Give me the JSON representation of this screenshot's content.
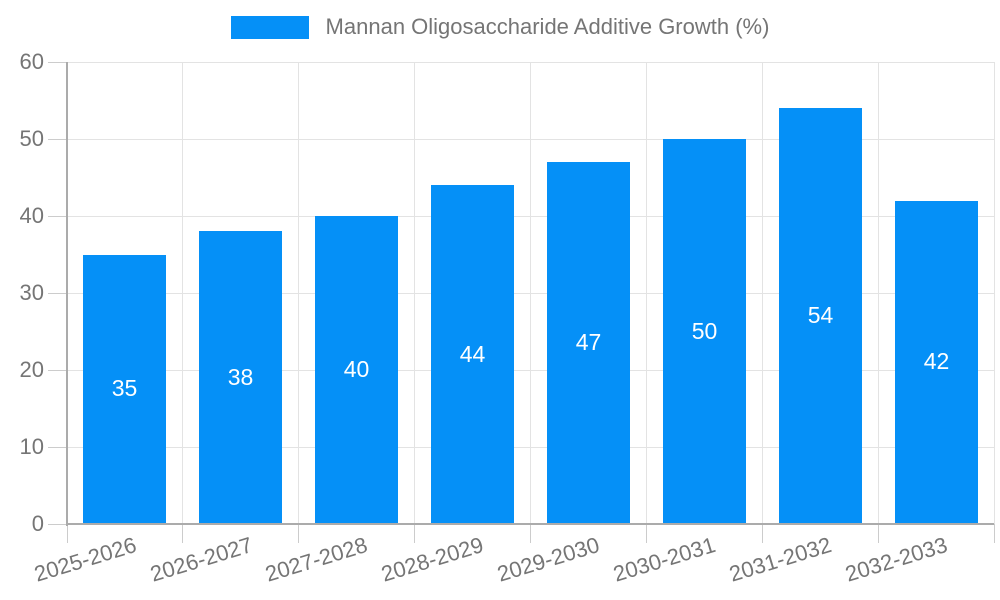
{
  "legend": {
    "label": "Mannan Oligosaccharide Additive Growth (%)",
    "swatch_color": "#0590f7"
  },
  "colors": {
    "bar": "#0590f7",
    "grid": "#e3e3e3",
    "axis": "#ababab",
    "tick": "#cccccc",
    "tick_text": "#757575",
    "value_text": "#ffffff",
    "background": "#ffffff"
  },
  "chart_data": {
    "type": "bar",
    "title": "Mannan Oligosaccharide Additive Growth (%)",
    "categories": [
      "2025-2026",
      "2026-2027",
      "2027-2028",
      "2028-2029",
      "2029-2030",
      "2030-2031",
      "2031-2032",
      "2032-2033"
    ],
    "values": [
      35,
      38,
      40,
      44,
      47,
      50,
      54,
      42
    ],
    "xlabel": "",
    "ylabel": "",
    "ylim": [
      0,
      60
    ],
    "yticks": [
      0,
      10,
      20,
      30,
      40,
      50,
      60
    ],
    "grid": "on",
    "legend_position": "top-center",
    "value_labels": "inside-middle",
    "x_label_rotation_deg": -17
  }
}
